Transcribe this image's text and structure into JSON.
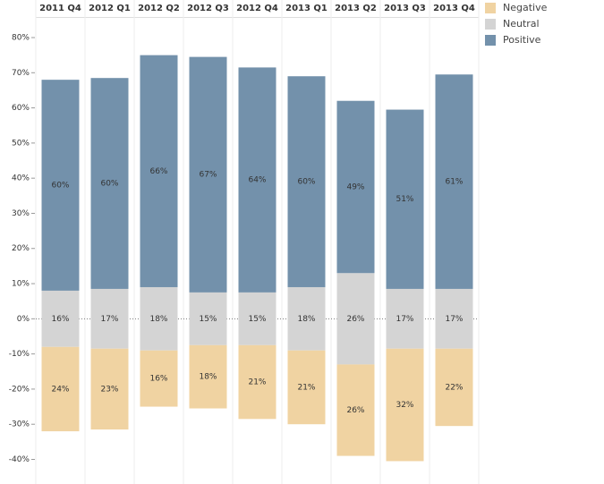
{
  "chart_data": {
    "type": "diverging-bar",
    "categories": [
      "2011 Q4",
      "2012 Q1",
      "2012 Q2",
      "2012 Q3",
      "2012 Q4",
      "2013 Q1",
      "2013 Q2",
      "2013 Q3",
      "2013 Q4"
    ],
    "series": [
      {
        "name": "Negative",
        "color": "#f0d3a2",
        "values": [
          24,
          23,
          16,
          18,
          21,
          21,
          26,
          32,
          22
        ],
        "value_labels": [
          "24%",
          "23%",
          "16%",
          "18%",
          "21%",
          "21%",
          "26%",
          "32%",
          "22%"
        ]
      },
      {
        "name": "Neutral",
        "color": "#d4d4d4",
        "values": [
          16,
          17,
          18,
          15,
          15,
          18,
          26,
          17,
          17
        ],
        "value_labels": [
          "16%",
          "17%",
          "18%",
          "15%",
          "15%",
          "18%",
          "26%",
          "17%",
          "17%"
        ]
      },
      {
        "name": "Positive",
        "color": "#7391ab",
        "values": [
          60,
          60,
          66,
          67,
          64,
          60,
          49,
          51,
          61
        ],
        "value_labels": [
          "60%",
          "60%",
          "66%",
          "67%",
          "64%",
          "60%",
          "49%",
          "51%",
          "61%"
        ]
      }
    ],
    "ylim": [
      -47,
      85.6
    ],
    "yticks": [
      {
        "value": -40,
        "label": "-40%"
      },
      {
        "value": -30,
        "label": "-30%"
      },
      {
        "value": -20,
        "label": "-20%"
      },
      {
        "value": -10,
        "label": "-10%"
      },
      {
        "value": 0,
        "label": "0%"
      },
      {
        "value": 10,
        "label": "10%"
      },
      {
        "value": 20,
        "label": "20%"
      },
      {
        "value": 30,
        "label": "30%"
      },
      {
        "value": 40,
        "label": "40%"
      },
      {
        "value": 50,
        "label": "50%"
      },
      {
        "value": 60,
        "label": "60%"
      },
      {
        "value": 70,
        "label": "70%"
      },
      {
        "value": 80,
        "label": "80%"
      }
    ]
  }
}
